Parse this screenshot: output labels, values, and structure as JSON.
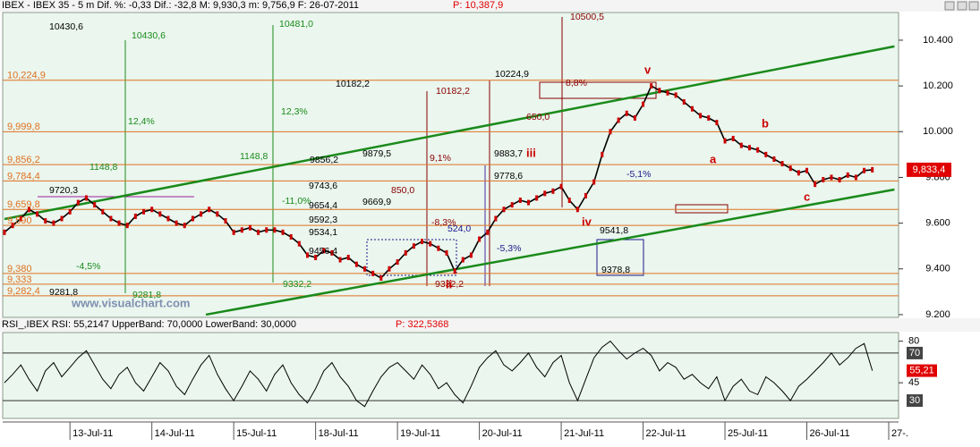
{
  "chart_data": [
    {
      "type": "line",
      "title": "IBEX - IBEX 35 - 5 m Dif. %: -0,33 Dif.: -32,8 M: 9,930,3 m: 9,756,9 F: 26-07-2011",
      "subtitle": "P: 10,387,9",
      "watermark": "www.visualchart.com",
      "xlim": [
        0,
        108
      ],
      "xticks": [
        {
          "value": 8,
          "label": "13-Jul-11"
        },
        {
          "value": 18,
          "label": "14-Jul-11"
        },
        {
          "value": 28,
          "label": "15-Jul-11"
        },
        {
          "value": 38,
          "label": "18-Jul-11"
        },
        {
          "value": 48,
          "label": "19-Jul-11"
        },
        {
          "value": 58,
          "label": "20-Jul-11"
        },
        {
          "value": 68,
          "label": "21-Jul-11"
        },
        {
          "value": 78,
          "label": "22-Jul-11"
        },
        {
          "value": 88,
          "label": "25-Jul-11"
        },
        {
          "value": 98,
          "label": "26-Jul-11"
        },
        {
          "value": 108,
          "label": "27-."
        }
      ],
      "ylim": [
        9188,
        10521
      ],
      "yticks": [
        {
          "value": 10400,
          "label": "10.400"
        },
        {
          "value": 10200,
          "label": "10.200"
        },
        {
          "value": 10000,
          "label": "10.000"
        },
        {
          "value": 9800,
          "label": "9.800"
        },
        {
          "value": 9600,
          "label": "9.600"
        },
        {
          "value": 9400,
          "label": "9.400"
        },
        {
          "value": 9200,
          "label": "9.200"
        }
      ],
      "series": [
        {
          "name": "IBEX 35",
          "color": "#000000",
          "candle_color": "#cc0000",
          "values": [
            9560,
            9590,
            9620,
            9660,
            9640,
            9610,
            9600,
            9620,
            9650,
            9690,
            9710,
            9680,
            9650,
            9620,
            9600,
            9590,
            9630,
            9650,
            9660,
            9640,
            9620,
            9600,
            9590,
            9620,
            9640,
            9660,
            9640,
            9610,
            9560,
            9570,
            9580,
            9560,
            9570,
            9570,
            9560,
            9540,
            9510,
            9460,
            9450,
            9480,
            9470,
            9440,
            9450,
            9420,
            9400,
            9380,
            9360,
            9400,
            9430,
            9470,
            9500,
            9520,
            9510,
            9490,
            9470,
            9390,
            9440,
            9460,
            9530,
            9560,
            9620,
            9660,
            9680,
            9700,
            9690,
            9710,
            9730,
            9740,
            9760,
            9700,
            9660,
            9720,
            9780,
            9900,
            10000,
            10050,
            10080,
            10060,
            10120,
            10200,
            10180,
            10170,
            10160,
            10130,
            10100,
            10070,
            10060,
            10040,
            9960,
            9970,
            9940,
            9930,
            9920,
            9900,
            9880,
            9860,
            9840,
            9820,
            9830,
            9770,
            9790,
            9800,
            9790,
            9810,
            9800,
            9830,
            9833.4
          ]
        }
      ],
      "last_price": {
        "value": 9833.4,
        "label": "9,833,4",
        "color": "#e00000"
      },
      "levels": [
        {
          "value": 10224.9,
          "label": "10,224,9"
        },
        {
          "value": 9999.8,
          "label": "9,999,8"
        },
        {
          "value": 9856.2,
          "label": "9,856,2"
        },
        {
          "value": 9784.4,
          "label": "9,784,4"
        },
        {
          "value": 9659.8,
          "label": "9,659,8"
        },
        {
          "value": 9590,
          "label": "9,590"
        },
        {
          "value": 9380,
          "label": "9,380"
        },
        {
          "value": 9333,
          "label": "9,333"
        },
        {
          "value": 9282.4,
          "label": "9,282,4"
        }
      ],
      "level_color": "#e07020",
      "trendlines": [
        {
          "color": "#1a8a1a",
          "x": [
            0,
            108.7
          ],
          "values": [
            9618,
            10373
          ]
        },
        {
          "color": "#1a8a1a",
          "x": [
            24.6,
            108.7
          ],
          "values": [
            9200,
            9747
          ]
        }
      ],
      "annotations": [
        {
          "text": "10430,6",
          "color": "#000000"
        },
        {
          "text": "10430,6",
          "color": "#1a8a1a"
        },
        {
          "text": "10481,0",
          "color": "#1a8a1a"
        },
        {
          "text": "10500,5",
          "color": "#8b0000"
        },
        {
          "text": "10224,9",
          "color": "#000000"
        },
        {
          "text": "10182,2",
          "color": "#000000"
        },
        {
          "text": "10182,2",
          "color": "#8b0000"
        },
        {
          "text": "1148,8",
          "color": "#1a8a1a"
        },
        {
          "text": "1148,8",
          "color": "#1a8a1a"
        },
        {
          "text": "12,4%",
          "color": "#1a8a1a"
        },
        {
          "text": "12,3%",
          "color": "#1a8a1a"
        },
        {
          "text": "-11,0%",
          "color": "#1a8a1a"
        },
        {
          "text": "-4,5%",
          "color": "#1a8a1a"
        },
        {
          "text": "9720,3",
          "color": "#000000"
        },
        {
          "text": "9856,2",
          "color": "#000000"
        },
        {
          "text": "9879,5",
          "color": "#000000"
        },
        {
          "text": "9743,6",
          "color": "#000000"
        },
        {
          "text": "9654,4",
          "color": "#000000"
        },
        {
          "text": "9669,9",
          "color": "#000000"
        },
        {
          "text": "9592,3",
          "color": "#000000"
        },
        {
          "text": "9534,1",
          "color": "#000000"
        },
        {
          "text": "9541,8",
          "color": "#000000"
        },
        {
          "text": "9456,4",
          "color": "#000000"
        },
        {
          "text": "9332,2",
          "color": "#1a8a1a"
        },
        {
          "text": "9332,2",
          "color": "#8b0000"
        },
        {
          "text": "9281,8",
          "color": "#000000"
        },
        {
          "text": "9281,8",
          "color": "#1a8a1a"
        },
        {
          "text": "9883,7",
          "color": "#000000"
        },
        {
          "text": "9778,6",
          "color": "#000000"
        },
        {
          "text": "9378,8",
          "color": "#000000"
        },
        {
          "text": "8,8%",
          "color": "#8b0000"
        },
        {
          "text": "-8,3%",
          "color": "#8b0000"
        },
        {
          "text": "-5,3%",
          "color": "#1a1a8b"
        },
        {
          "text": "-5,1%",
          "color": "#1a1a8b"
        },
        {
          "text": "650,0",
          "color": "#8b0000"
        },
        {
          "text": "850,0",
          "color": "#8b0000"
        },
        {
          "text": "524,0",
          "color": "#1a1a8b"
        },
        {
          "text": "9,1%",
          "color": "#8b0000"
        },
        {
          "text": "v",
          "color": "#cc0000"
        },
        {
          "text": "iv",
          "color": "#cc0000"
        },
        {
          "text": "a",
          "color": "#cc0000"
        },
        {
          "text": "b",
          "color": "#cc0000"
        },
        {
          "text": "c",
          "color": "#cc0000"
        },
        {
          "text": "ii",
          "color": "#cc0000"
        },
        {
          "text": "iii",
          "color": "#cc0000"
        }
      ]
    },
    {
      "type": "line",
      "title": "RSI_,IBEX RSI: 55,2147 UpperBand: 70,0000 LowerBand: 30,0000",
      "subtitle": "P: 322,5368",
      "ylim": [
        15,
        85
      ],
      "yticks": [
        80,
        45
      ],
      "bands": [
        70,
        30
      ],
      "last_value": {
        "value": 55.2147,
        "label": "55,21",
        "color": "#e00000"
      },
      "series": [
        {
          "name": "RSI",
          "color": "#000000",
          "values": [
            45,
            52,
            60,
            48,
            38,
            55,
            62,
            50,
            58,
            66,
            72,
            60,
            48,
            40,
            52,
            58,
            45,
            38,
            50,
            62,
            55,
            42,
            35,
            48,
            60,
            68,
            52,
            40,
            30,
            42,
            55,
            48,
            38,
            52,
            60,
            45,
            35,
            28,
            40,
            55,
            62,
            50,
            42,
            30,
            25,
            38,
            50,
            58,
            62,
            55,
            48,
            60,
            52,
            40,
            45,
            35,
            28,
            42,
            58,
            66,
            72,
            60,
            55,
            62,
            70,
            58,
            50,
            62,
            68,
            45,
            30,
            48,
            66,
            75,
            80,
            72,
            65,
            70,
            74,
            68,
            55,
            62,
            58,
            48,
            52,
            45,
            40,
            50,
            30,
            42,
            48,
            38,
            35,
            50,
            45,
            38,
            30,
            42,
            48,
            55,
            62,
            70,
            60,
            66,
            74,
            78,
            55.2147
          ]
        }
      ]
    }
  ]
}
